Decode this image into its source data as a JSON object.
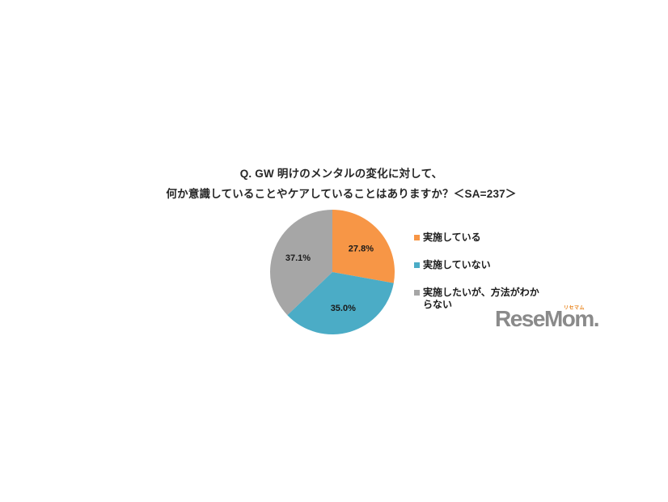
{
  "page": {
    "background": "#ffffff"
  },
  "title": {
    "line1": "Q. GW 明けのメンタルの変化に対して、",
    "line2": "何か意識していることやケアしていることはありますか？＜SA=237＞"
  },
  "chart_data": {
    "type": "pie",
    "title": "Q. GW 明けのメンタルの変化に対して、何か意識していることやケアしていることはありますか？＜SA=237＞",
    "labels": [
      "実施している",
      "実施していない",
      "実施したいが、方法がわからない"
    ],
    "values": [
      27.8,
      35.0,
      37.1
    ],
    "data_labels": [
      "27.8%",
      "35.0%",
      "37.1%"
    ],
    "colors": [
      "#F79646",
      "#4BACC6",
      "#A6A6A6"
    ],
    "start_angle": "12 o'clock",
    "direction": "clockwise",
    "legend_position": "right",
    "label_radius_ratio": 0.6
  },
  "legend": {
    "items": [
      {
        "label": "実施している",
        "color": "#F79646"
      },
      {
        "label": "実施していない",
        "color": "#4BACC6"
      },
      {
        "label": "実施したいが、方法がわからない",
        "color": "#A6A6A6"
      }
    ]
  },
  "logo": {
    "text": "ReseMom.",
    "ruby": "リセマム",
    "text_color": "#8a8a8a",
    "ruby_color": "#e9841c"
  }
}
